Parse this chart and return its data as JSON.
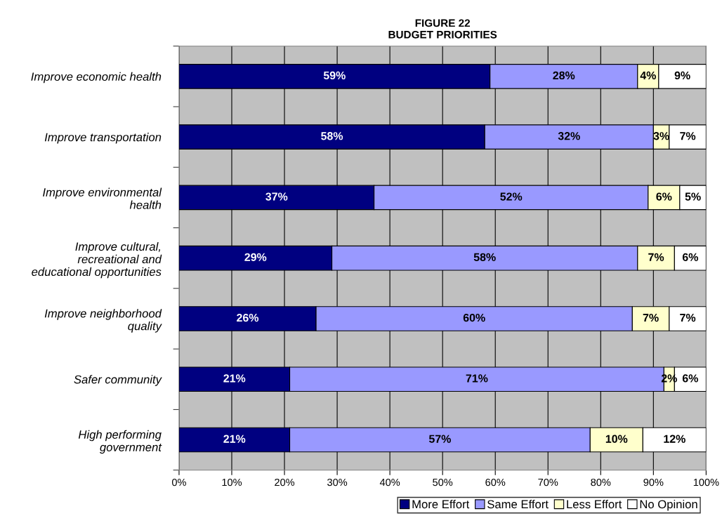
{
  "chart_data": {
    "type": "bar",
    "orientation": "horizontal",
    "stacked": true,
    "title": "FIGURE 22",
    "subtitle": "BUDGET PRIORITIES",
    "categories": [
      "Improve economic health",
      "Improve transportation",
      "Improve environmental\nhealth",
      "Improve cultural,\nrecreational and\neducational opportunities",
      "Improve neighborhood\nquality",
      "Safer community",
      "High performing\ngovernment"
    ],
    "series": [
      {
        "name": "More Effort",
        "color": "#000080",
        "values": [
          59,
          58,
          37,
          29,
          26,
          21,
          21
        ],
        "value_labels": [
          "59%",
          "58%",
          "37%",
          "29%",
          "26%",
          "21%",
          "21%"
        ]
      },
      {
        "name": "Same Effort",
        "color": "#9999ff",
        "values": [
          28,
          32,
          52,
          58,
          60,
          71,
          57
        ],
        "value_labels": [
          "28%",
          "32%",
          "52%",
          "58%",
          "60%",
          "71%",
          "57%"
        ]
      },
      {
        "name": "Less Effort",
        "color": "#ffffcc",
        "values": [
          4,
          3,
          6,
          7,
          7,
          2,
          10
        ],
        "value_labels": [
          "4%",
          "3%",
          "6%",
          "7%",
          "7%",
          "2%",
          "10%"
        ]
      },
      {
        "name": "No Opinion",
        "color": "#ffffff",
        "values": [
          9,
          7,
          5,
          6,
          7,
          6,
          12
        ],
        "value_labels": [
          "9%",
          "7%",
          "5%",
          "6%",
          "7%",
          "6%",
          "12%"
        ]
      }
    ],
    "xlim": [
      0,
      100
    ],
    "xticks": [
      {
        "value": 0,
        "label": "0%"
      },
      {
        "value": 10,
        "label": "10%"
      },
      {
        "value": 20,
        "label": "20%"
      },
      {
        "value": 30,
        "label": "30%"
      },
      {
        "value": 40,
        "label": "40%"
      },
      {
        "value": 50,
        "label": "50%"
      },
      {
        "value": 60,
        "label": "60%"
      },
      {
        "value": 70,
        "label": "70%"
      },
      {
        "value": 80,
        "label": "80%"
      },
      {
        "value": 90,
        "label": "90%"
      },
      {
        "value": 100,
        "label": "100%"
      }
    ],
    "grid": "x",
    "legend": "bottom right"
  }
}
